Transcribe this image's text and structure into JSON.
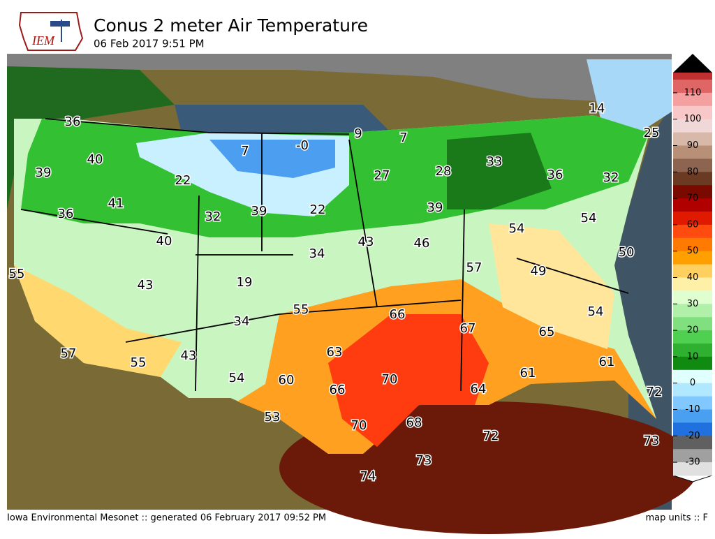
{
  "header": {
    "logo": "IEM",
    "title": "Conus 2 meter Air Temperature",
    "subtitle": "06 Feb 2017 9:51 PM"
  },
  "station_labels": [
    "36",
    "40",
    "39",
    "41",
    "36",
    "22",
    "7",
    "-0",
    "9",
    "7",
    "27",
    "28",
    "33",
    "14",
    "25",
    "36",
    "32",
    "39",
    "22",
    "32",
    "40",
    "43",
    "46",
    "39",
    "54",
    "54",
    "34",
    "50",
    "55",
    "43",
    "19",
    "57",
    "49",
    "55",
    "66",
    "54",
    "34",
    "67",
    "65",
    "57",
    "55",
    "43",
    "63",
    "61",
    "54",
    "60",
    "70",
    "61",
    "66",
    "64",
    "72",
    "53",
    "70",
    "68",
    "72",
    "73",
    "73",
    "74"
  ],
  "colorbar": {
    "ticks": [
      110,
      100,
      90,
      80,
      70,
      60,
      50,
      40,
      30,
      20,
      10,
      0,
      -10,
      -20,
      -30
    ],
    "colors": [
      "#e06666",
      "#f4a0a0",
      "#f8c8c8",
      "#f0d8d8",
      "#d8b8a8",
      "#b89078",
      "#8c6450",
      "#6a3a22",
      "#7a0a00",
      "#b00000",
      "#e01a00",
      "#ff4a10",
      "#ff7a00",
      "#ffa000",
      "#ffd060",
      "#fff0a8",
      "#e0ffd0",
      "#b0f0a8",
      "#80e080",
      "#50d050",
      "#30b030",
      "#108a10",
      "#e0ffff",
      "#b0e8ff",
      "#80c8ff",
      "#4aa0f0",
      "#2070e0",
      "#606060",
      "#a0a0a0",
      "#e0e0e0"
    ]
  },
  "footer": {
    "left": "Iowa Environmental Mesonet :: generated 06 February 2017 09:52 PM",
    "right": "map units :: F"
  }
}
